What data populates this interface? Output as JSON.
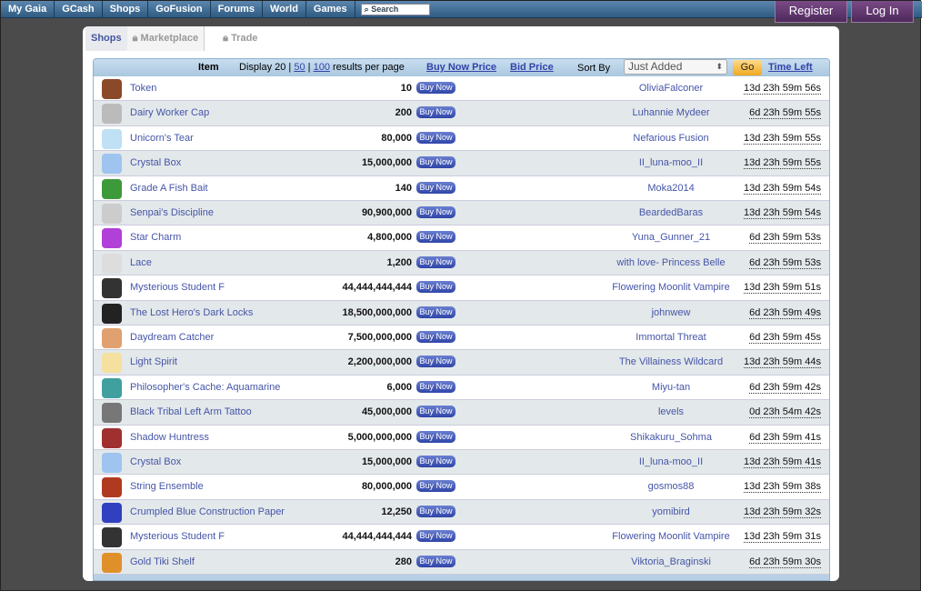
{
  "nav": {
    "items": [
      "My Gaia",
      "GCash",
      "Shops",
      "GoFusion",
      "Forums",
      "World",
      "Games"
    ],
    "search_placeholder": "Search",
    "register": "Register",
    "login": "Log In"
  },
  "tabs": {
    "shops": "Shops",
    "marketplace": "Marketplace",
    "trade": "Trade"
  },
  "header": {
    "item": "Item",
    "display_prefix": "Display 20 |",
    "opt50": "50",
    "sep": "|",
    "opt100": "100",
    "display_suffix": "results per page",
    "buy_now_price": "Buy Now Price",
    "bid_price": "Bid Price",
    "sort_by": "Sort By",
    "sort_value": "Just Added",
    "go": "Go",
    "time_left": "Time Left"
  },
  "buy_label": "Buy Now",
  "colors": {
    "nav": "#3f6d96",
    "link": "#4555a8",
    "buy": "#3a50b0",
    "go": "#f5b73a",
    "auth": "#65386f"
  },
  "rows": [
    {
      "name": "Token",
      "price": "10",
      "seller": "OliviaFalconer",
      "time": "13d 23h 59m 56s",
      "c": "#8a4a2a"
    },
    {
      "name": "Dairy Worker Cap",
      "price": "200",
      "seller": "Luhannie Mydeer",
      "time": "6d 23h 59m 55s",
      "c": "#bbbbbb"
    },
    {
      "name": "Unicorn's Tear",
      "price": "80,000",
      "seller": "Nefarious Fusion",
      "time": "13d 23h 59m 55s",
      "c": "#bfe0f5"
    },
    {
      "name": "Crystal Box",
      "price": "15,000,000",
      "seller": "II_luna-moo_II",
      "time": "13d 23h 59m 55s",
      "c": "#9ec4ef"
    },
    {
      "name": "Grade A Fish Bait",
      "price": "140",
      "seller": "Moka2014",
      "time": "13d 23h 59m 54s",
      "c": "#3d9a3a"
    },
    {
      "name": "Senpai's Discipline",
      "price": "90,900,000",
      "seller": "BeardedBaras",
      "time": "13d 23h 59m 54s",
      "c": "#cccccc"
    },
    {
      "name": "Star Charm",
      "price": "4,800,000",
      "seller": "Yuna_Gunner_21",
      "time": "6d 23h 59m 53s",
      "c": "#b040d8"
    },
    {
      "name": "Lace",
      "price": "1,200",
      "seller": "with love- Princess Belle",
      "time": "6d 23h 59m 53s",
      "c": "#dddddd"
    },
    {
      "name": "Mysterious Student F",
      "price": "44,444,444,444",
      "seller": "Flowering Moonlit Vampire",
      "time": "13d 23h 59m 51s",
      "c": "#333333"
    },
    {
      "name": "The Lost Hero's Dark Locks",
      "price": "18,500,000,000",
      "seller": "johnwew",
      "time": "6d 23h 59m 49s",
      "c": "#222222"
    },
    {
      "name": "Daydream Catcher",
      "price": "7,500,000,000",
      "seller": "Immortal Threat",
      "time": "6d 23h 59m 45s",
      "c": "#e0a070"
    },
    {
      "name": "Light Spirit",
      "price": "2,200,000,000",
      "seller": "The Villainess Wildcard",
      "time": "13d 23h 59m 44s",
      "c": "#f5e0a0"
    },
    {
      "name": "Philosopher's Cache: Aquamarine",
      "price": "6,000",
      "seller": "Miyu-tan",
      "time": "6d 23h 59m 42s",
      "c": "#40a0a0"
    },
    {
      "name": "Black Tribal Left Arm Tattoo",
      "price": "45,000,000",
      "seller": "levels",
      "time": "0d 23h 54m 42s",
      "c": "#777777"
    },
    {
      "name": "Shadow Huntress",
      "price": "5,000,000,000",
      "seller": "Shikakuru_Sohma",
      "time": "6d 23h 59m 41s",
      "c": "#a03030"
    },
    {
      "name": "Crystal Box",
      "price": "15,000,000",
      "seller": "II_luna-moo_II",
      "time": "13d 23h 59m 41s",
      "c": "#9ec4ef"
    },
    {
      "name": "String Ensemble",
      "price": "80,000,000",
      "seller": "gosmos88",
      "time": "13d 23h 59m 38s",
      "c": "#b03a20"
    },
    {
      "name": "Crumpled Blue Construction Paper",
      "price": "12,250",
      "seller": "yomibird",
      "time": "13d 23h 59m 32s",
      "c": "#3040c0"
    },
    {
      "name": "Mysterious Student F",
      "price": "44,444,444,444",
      "seller": "Flowering Moonlit Vampire",
      "time": "13d 23h 59m 31s",
      "c": "#333333"
    },
    {
      "name": "Gold Tiki Shelf",
      "price": "280",
      "seller": "Viktoria_Braginski",
      "time": "6d 23h 59m 30s",
      "c": "#e0902a"
    }
  ]
}
